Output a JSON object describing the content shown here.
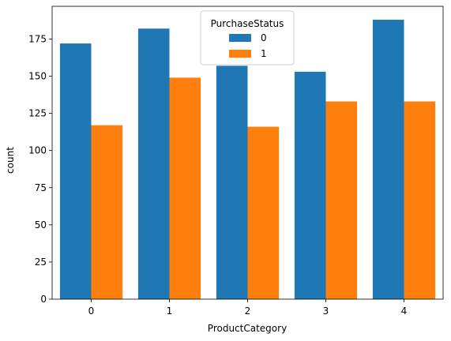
{
  "chart_data": {
    "type": "bar",
    "categories": [
      "0",
      "1",
      "2",
      "3",
      "4"
    ],
    "series": [
      {
        "name": "0",
        "values": [
          172,
          182,
          157,
          153,
          188
        ],
        "color": "#1f77b4"
      },
      {
        "name": "1",
        "values": [
          117,
          149,
          116,
          133,
          133
        ],
        "color": "#ff7f0e"
      }
    ],
    "xlabel": "ProductCategory",
    "ylabel": "count",
    "ylim": [
      0,
      197
    ],
    "yticks": [
      0,
      25,
      50,
      75,
      100,
      125,
      150,
      175
    ],
    "grid": false,
    "legend": {
      "title": "PurchaseStatus",
      "placement": "top-center"
    }
  }
}
